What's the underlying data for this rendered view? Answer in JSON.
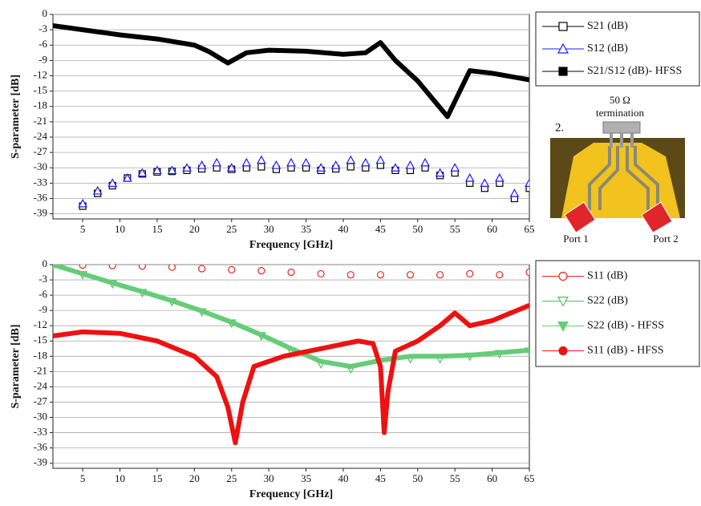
{
  "chart_data": [
    {
      "type": "scatter",
      "xlabel": "Frequency [GHz]",
      "ylabel": "S-parameter [dB]",
      "xlim": [
        1,
        65
      ],
      "xticks": [
        5,
        10,
        15,
        20,
        25,
        30,
        35,
        40,
        45,
        50,
        55,
        60,
        65
      ],
      "ylim": [
        -40,
        0
      ],
      "yticks": [
        0,
        -3,
        -6,
        -9,
        -12,
        -15,
        -18,
        -21,
        -24,
        -27,
        -30,
        -33,
        -36,
        -39
      ],
      "grid": true,
      "legend": "right",
      "series": [
        {
          "name": "S21 (dB)",
          "color": "#000000",
          "marker": "square-open",
          "x": [
            5,
            7,
            9,
            11,
            13,
            15,
            17,
            19,
            21,
            23,
            25,
            27,
            29,
            31,
            33,
            35,
            37,
            39,
            41,
            43,
            45,
            47,
            49,
            51,
            53,
            55,
            57,
            59,
            61,
            63,
            65
          ],
          "values": [
            -37.5,
            -35,
            -33.5,
            -32,
            -31.2,
            -30.8,
            -30.7,
            -30.5,
            -30.2,
            -30,
            -30.3,
            -30,
            -29.8,
            -30.3,
            -30,
            -30,
            -30.5,
            -30.2,
            -29.8,
            -30,
            -29.5,
            -30.5,
            -30.5,
            -30,
            -31.5,
            -31,
            -33,
            -34,
            -33,
            -36,
            -34
          ]
        },
        {
          "name": "S12 (dB)",
          "color": "#1a1aff",
          "marker": "triangle-open",
          "x": [
            5,
            7,
            9,
            11,
            13,
            15,
            17,
            19,
            21,
            23,
            25,
            27,
            29,
            31,
            33,
            35,
            37,
            39,
            41,
            43,
            45,
            47,
            49,
            51,
            53,
            55,
            57,
            59,
            61,
            63,
            65
          ],
          "values": [
            -37,
            -34.5,
            -33,
            -32,
            -31,
            -30.5,
            -30.5,
            -30,
            -29.5,
            -29,
            -30,
            -29,
            -28.5,
            -29.5,
            -29,
            -29,
            -30,
            -29.5,
            -28.5,
            -29,
            -28.5,
            -30,
            -29.5,
            -29,
            -31,
            -30,
            -32,
            -33,
            -32,
            -35,
            -33
          ]
        },
        {
          "name": "S21/S12 (dB)- HFSS",
          "color": "#000000",
          "marker": "square",
          "x": [
            1,
            5,
            10,
            15,
            20,
            22,
            24.5,
            27,
            30,
            35,
            40,
            43,
            45,
            47,
            50,
            52,
            54,
            55,
            57,
            60,
            65
          ],
          "values": [
            -2.2,
            -3,
            -4,
            -4.8,
            -6,
            -7.3,
            -9.5,
            -7.5,
            -7,
            -7.2,
            -7.8,
            -7.5,
            -5.5,
            -9,
            -13,
            -16.5,
            -20,
            -17,
            -11,
            -11.5,
            -12.8
          ]
        }
      ]
    },
    {
      "type": "scatter",
      "xlabel": "Frequency [GHz]",
      "ylabel": "S-parameter [dB]",
      "xlim": [
        1,
        65
      ],
      "xticks": [
        5,
        10,
        15,
        20,
        25,
        30,
        35,
        40,
        45,
        50,
        55,
        60,
        65
      ],
      "ylim": [
        -40,
        0
      ],
      "yticks": [
        0,
        -3,
        -6,
        -9,
        -12,
        -15,
        -18,
        -21,
        -24,
        -27,
        -30,
        -33,
        -36,
        -39
      ],
      "grid": true,
      "legend": "right",
      "series": [
        {
          "name": "S11 (dB)",
          "color": "#ee2222",
          "marker": "circle-open",
          "x": [
            1,
            5,
            9,
            13,
            17,
            21,
            25,
            29,
            33,
            37,
            41,
            45,
            49,
            53,
            57,
            61,
            65
          ],
          "values": [
            0,
            -0.1,
            -0.2,
            -0.3,
            -0.5,
            -0.8,
            -1,
            -1.2,
            -1.5,
            -1.8,
            -2,
            -2,
            -2,
            -2,
            -1.8,
            -2,
            -1.5
          ]
        },
        {
          "name": "S22 (dB)",
          "color": "#55bb66",
          "marker": "triangle-down-open",
          "x": [
            1,
            5,
            9,
            13,
            17,
            21,
            25,
            29,
            33,
            37,
            41,
            45,
            49,
            53,
            57,
            61,
            65
          ],
          "values": [
            -0.3,
            -2,
            -3.8,
            -5.5,
            -7.3,
            -9.3,
            -11.5,
            -14,
            -17,
            -19.5,
            -20.5,
            -19,
            -18.5,
            -18.5,
            -18,
            -17.5,
            -17
          ]
        },
        {
          "name": "S22 (dB) - HFSS",
          "color": "#66cc77",
          "marker": "triangle-down",
          "x": [
            1,
            5,
            9,
            13,
            17,
            21,
            25,
            29,
            33,
            37,
            41,
            45,
            49,
            53,
            57,
            61,
            65
          ],
          "values": [
            0,
            -1.8,
            -3.6,
            -5.3,
            -7.1,
            -9.1,
            -11.3,
            -13.8,
            -16.5,
            -19,
            -20,
            -18.8,
            -18,
            -18,
            -17.8,
            -17.3,
            -16.8
          ]
        },
        {
          "name": "S11 (dB) - HFSS",
          "color": "#ee1111",
          "marker": "circle",
          "x": [
            1,
            5,
            10,
            15,
            20,
            23,
            24.5,
            25.5,
            26.5,
            28,
            32,
            37,
            42,
            44,
            45,
            45.5,
            46,
            47,
            50,
            53,
            55,
            57,
            60,
            65
          ],
          "values": [
            -14,
            -13.2,
            -13.5,
            -15,
            -18,
            -22,
            -28,
            -35,
            -27,
            -20,
            -18,
            -16.5,
            -15,
            -15.5,
            -20,
            -33,
            -25,
            -17,
            -15,
            -12,
            -9.5,
            -12,
            -11,
            -8
          ]
        }
      ]
    }
  ],
  "inset": {
    "label": "2.",
    "termination_value": "50 Ω",
    "termination_text": "termination",
    "port1": "Port 1",
    "port2": "Port 2"
  }
}
